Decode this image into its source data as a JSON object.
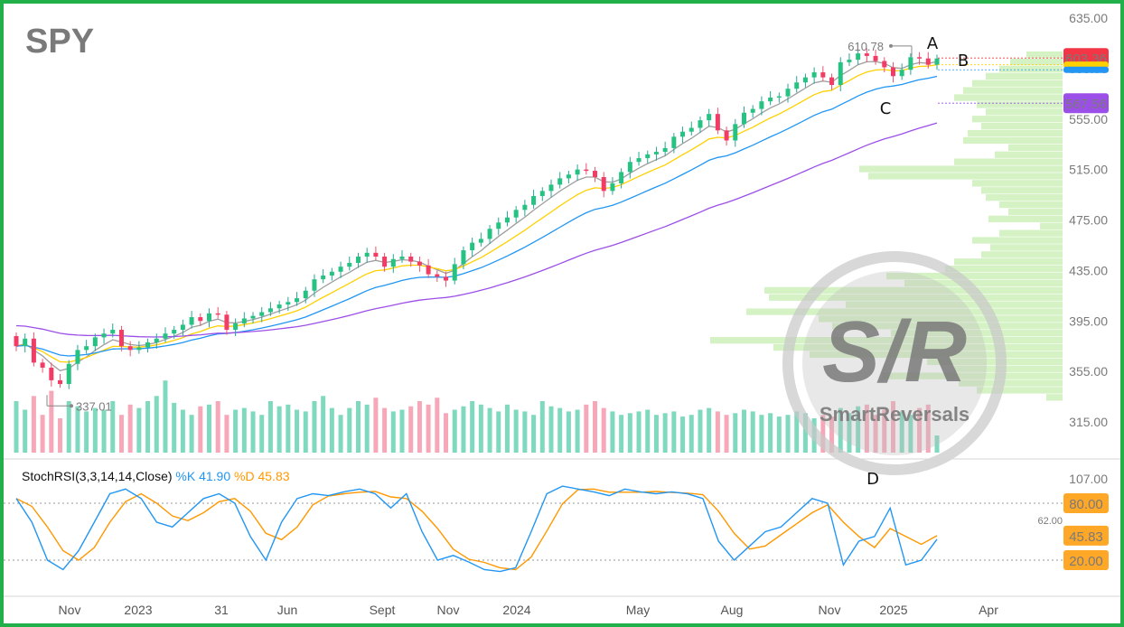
{
  "chart_data": {
    "type": "candlestick",
    "title": "SPY",
    "timeframe": "weekly",
    "x_ticks": [
      "Nov",
      "2023",
      "31",
      "Jun",
      "Sept",
      "Nov",
      "2024",
      "May",
      "Aug",
      "Nov",
      "2025",
      "Apr"
    ],
    "price_axis": {
      "ylim": [
        305,
        640
      ],
      "ticks": [
        "635.00",
        "595.00",
        "555.00",
        "515.00",
        "475.00",
        "435.00",
        "395.00",
        "355.00",
        "315.00"
      ]
    },
    "price_tags": [
      {
        "label": "603.36",
        "value": 603.36,
        "color": "#f23645"
      },
      {
        "label": "",
        "value": 598,
        "color": "#ffd000"
      },
      {
        "label": "",
        "value": 594,
        "color": "#2196f3"
      },
      {
        "label": "567.56",
        "value": 567.56,
        "color": "#9c4fe8"
      }
    ],
    "high_label": {
      "text": "610.78",
      "value": 610.78
    },
    "low_label": {
      "text": "337.01",
      "value": 337.01
    },
    "closes": [
      375,
      381,
      362,
      358,
      348,
      345,
      361,
      372,
      375,
      382,
      385,
      388,
      375,
      372,
      374,
      378,
      381,
      385,
      388,
      392,
      398,
      395,
      401,
      400,
      388,
      393,
      397,
      399,
      402,
      405,
      408,
      410,
      413,
      419,
      428,
      431,
      434,
      438,
      441,
      446,
      449,
      446,
      438,
      444,
      446,
      442,
      439,
      432,
      430,
      427,
      440,
      451,
      457,
      460,
      468,
      473,
      477,
      483,
      487,
      494,
      498,
      503,
      508,
      511,
      515,
      514,
      509,
      498,
      504,
      513,
      521,
      524,
      527,
      529,
      532,
      541,
      545,
      548,
      554,
      559,
      546,
      538,
      551,
      560,
      563,
      569,
      572,
      573,
      579,
      584,
      588,
      592,
      588,
      582,
      600,
      602,
      607,
      605,
      601,
      596,
      589,
      594,
      604,
      603,
      598,
      603
    ],
    "ema_5_color": "#9e9e9e",
    "ema_10_color": "#ffd000",
    "ema_20_color": "#2196f3",
    "ema_50_color": "#9c4fe8",
    "annotations": [
      "A",
      "B",
      "C",
      "D"
    ],
    "watermark": "S/R SmartReversals",
    "stoch_rsi": {
      "label": "StochRSI(3,3,14,14,Close)",
      "k_label": "%K 41.90",
      "d_label": "%D 45.83",
      "k_color": "#2196f3",
      "d_color": "#ff9800",
      "ylim": [
        0,
        107
      ],
      "axis_ticks": [
        "107.00",
        "62.00"
      ],
      "tags": [
        {
          "label": "80.00",
          "value": 80
        },
        {
          "label": "45.83",
          "value": 45.83
        },
        {
          "label": "20.00",
          "value": 20
        }
      ],
      "k": [
        85,
        60,
        20,
        10,
        30,
        60,
        90,
        95,
        85,
        60,
        55,
        70,
        85,
        90,
        80,
        45,
        20,
        60,
        85,
        90,
        88,
        92,
        95,
        90,
        75,
        90,
        50,
        20,
        25,
        18,
        10,
        8,
        12,
        50,
        90,
        98,
        95,
        92,
        88,
        95,
        92,
        90,
        92,
        90,
        85,
        40,
        20,
        35,
        50,
        55,
        70,
        85,
        80,
        15,
        40,
        45,
        75,
        15,
        20,
        42
      ]
    },
    "volume": {
      "up_color": "#7fd9be",
      "down_color": "#f7a8b8",
      "values": [
        30,
        25,
        33,
        22,
        36,
        20,
        30,
        27,
        24,
        26,
        25,
        30,
        22,
        28,
        26,
        30,
        33,
        42,
        29,
        25,
        22,
        27,
        28,
        30,
        22,
        25,
        26,
        24,
        22,
        30,
        27,
        28,
        25,
        24,
        30,
        33,
        26,
        22,
        26,
        30,
        28,
        32,
        26,
        24,
        25,
        27,
        30,
        28,
        32,
        23,
        25,
        27,
        30,
        28,
        26,
        24,
        28,
        25,
        24,
        22,
        30,
        27,
        26,
        24,
        25,
        28,
        30,
        26,
        24,
        22,
        23,
        24,
        25,
        22,
        23,
        24,
        21,
        22,
        25,
        26,
        24,
        22,
        23,
        25,
        24,
        22,
        23,
        21,
        22,
        24,
        23,
        20,
        22,
        21,
        26,
        23,
        27,
        28,
        22,
        25,
        30,
        24,
        22,
        26,
        28,
        10
      ]
    }
  }
}
